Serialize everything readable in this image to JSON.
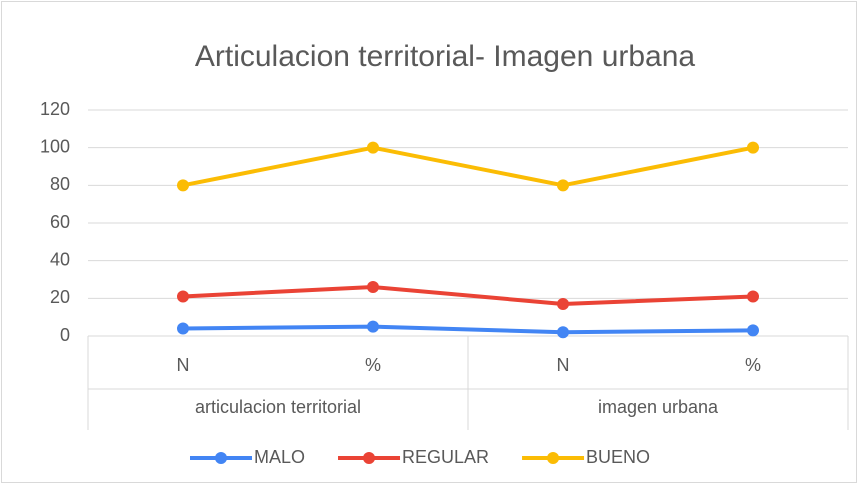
{
  "chart_data": {
    "type": "line",
    "title": "Articulacion territorial- Imagen urbana",
    "categories": [
      "N",
      "%",
      "N",
      "%"
    ],
    "category_groups": [
      "articulacion territorial",
      "imagen urbana"
    ],
    "series": [
      {
        "name": "MALO",
        "color": "#4285f4",
        "values": [
          4,
          5,
          2,
          3
        ]
      },
      {
        "name": "REGULAR",
        "color": "#ea4335",
        "values": [
          21,
          26,
          17,
          21
        ]
      },
      {
        "name": "BUENO",
        "color": "#fbbc04",
        "values": [
          80,
          100,
          80,
          100
        ]
      }
    ],
    "ylim": [
      0,
      120
    ],
    "yticks": [
      0,
      20,
      40,
      60,
      80,
      100,
      120
    ],
    "grid": true,
    "legend": "bottom"
  }
}
